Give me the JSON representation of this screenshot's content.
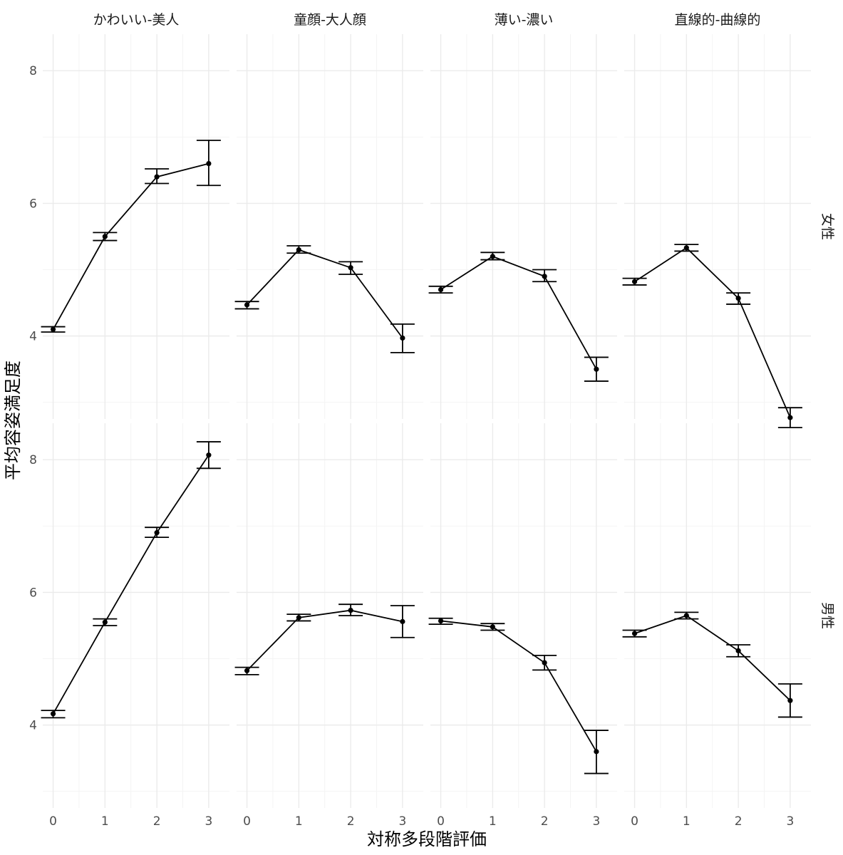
{
  "chart_data": {
    "type": "line",
    "xlabel": "対称多段階評価",
    "ylabel": "平均容姿満足度",
    "x": [
      0,
      1,
      2,
      3
    ],
    "x_ticks": [
      "0",
      "1",
      "2",
      "3"
    ],
    "y_ticks": [
      "4",
      "6",
      "8"
    ],
    "ylim": [
      2.75,
      8.55
    ],
    "xlim": [
      -0.2,
      3.4
    ],
    "grid": true,
    "facet_columns": [
      "かわいい-美人",
      "童顔-大人顔",
      "薄い-濃い",
      "直線的-曲線的"
    ],
    "facet_rows": [
      "女性",
      "男性"
    ],
    "panels": [
      {
        "row": "女性",
        "column": "かわいい-美人",
        "values": [
          4.1,
          5.5,
          6.4,
          6.6
        ],
        "lower": [
          4.06,
          5.44,
          6.3,
          6.27
        ],
        "upper": [
          4.14,
          5.56,
          6.52,
          6.95
        ]
      },
      {
        "row": "女性",
        "column": "童顔-大人顔",
        "values": [
          4.47,
          5.3,
          5.03,
          3.97
        ],
        "lower": [
          4.41,
          5.25,
          4.93,
          3.75
        ],
        "upper": [
          4.52,
          5.36,
          5.12,
          4.18
        ]
      },
      {
        "row": "女性",
        "column": "薄い-濃い",
        "values": [
          4.7,
          5.2,
          4.9,
          3.5
        ],
        "lower": [
          4.65,
          5.15,
          4.82,
          3.32
        ],
        "upper": [
          4.75,
          5.26,
          5.0,
          3.68
        ]
      },
      {
        "row": "女性",
        "column": "直線的-曲線的",
        "values": [
          4.82,
          5.33,
          4.57,
          2.77
        ],
        "lower": [
          4.77,
          5.28,
          4.48,
          2.62
        ],
        "upper": [
          4.87,
          5.38,
          4.65,
          2.92
        ]
      },
      {
        "row": "男性",
        "column": "かわいい-美人",
        "values": [
          4.17,
          5.55,
          6.9,
          8.07
        ],
        "lower": [
          4.11,
          5.5,
          6.83,
          7.87
        ],
        "upper": [
          4.22,
          5.6,
          6.98,
          8.27
        ]
      },
      {
        "row": "男性",
        "column": "童顔-大人顔",
        "values": [
          4.82,
          5.62,
          5.73,
          5.56
        ],
        "lower": [
          4.76,
          5.57,
          5.65,
          5.32
        ],
        "upper": [
          4.87,
          5.67,
          5.82,
          5.8
        ]
      },
      {
        "row": "男性",
        "column": "薄い-濃い",
        "values": [
          5.57,
          5.48,
          4.94,
          3.6
        ],
        "lower": [
          5.52,
          5.43,
          4.83,
          3.27
        ],
        "upper": [
          5.61,
          5.53,
          5.05,
          3.92
        ]
      },
      {
        "row": "男性",
        "column": "直線的-曲線的",
        "values": [
          5.38,
          5.65,
          5.12,
          4.37
        ],
        "lower": [
          5.33,
          5.6,
          5.03,
          4.12
        ],
        "upper": [
          5.43,
          5.7,
          5.21,
          4.62
        ]
      }
    ]
  }
}
